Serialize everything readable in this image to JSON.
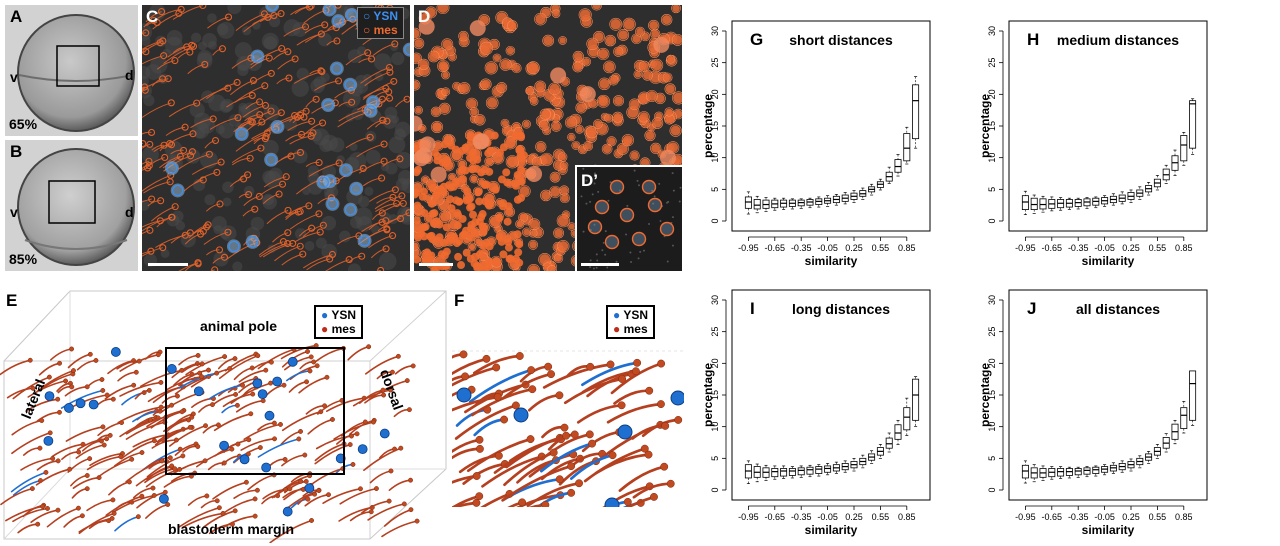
{
  "colors": {
    "ysn": "#1f6fd1",
    "mes": "#e0612a",
    "mes_3d": "#b5401f",
    "micro_bg": "#2e2e2e",
    "embryo_bg": "#d2d2d2"
  },
  "panels": {
    "A": {
      "label": "A",
      "stage": "65%",
      "left": "v",
      "right": "d"
    },
    "B": {
      "label": "B",
      "stage": "85%",
      "left": "v",
      "right": "d"
    },
    "C": {
      "label": "C",
      "legend": {
        "ysn": "YSN",
        "mes": "mes"
      }
    },
    "D": {
      "label": "D",
      "inset_label": "D’"
    },
    "E": {
      "label": "E",
      "top": "animal pole",
      "bottom": "blastoderm margin",
      "left": "lateral",
      "right": "dorsal",
      "legend": {
        "ysn": "YSN",
        "mes": "mes"
      }
    },
    "F": {
      "label": "F",
      "legend": {
        "ysn": "YSN",
        "mes": "mes"
      }
    }
  },
  "chart_data": [
    {
      "panel": "G",
      "type": "box",
      "title": "short distances",
      "xlabel": "similarity",
      "ylabel": "percentage",
      "ylim": [
        0,
        30
      ],
      "yticks": [
        0,
        5,
        10,
        15,
        20,
        25,
        30
      ],
      "xticks": [
        -0.95,
        -0.65,
        -0.35,
        -0.05,
        0.25,
        0.55,
        0.85
      ],
      "x": [
        -0.95,
        -0.85,
        -0.75,
        -0.65,
        -0.55,
        -0.45,
        -0.35,
        -0.25,
        -0.15,
        -0.05,
        0.05,
        0.15,
        0.25,
        0.35,
        0.45,
        0.55,
        0.65,
        0.75,
        0.85,
        0.95
      ],
      "median": [
        3,
        2.5,
        2.6,
        2.7,
        2.8,
        2.8,
        2.9,
        3,
        3.1,
        3.2,
        3.4,
        3.6,
        3.9,
        4.3,
        5,
        5.8,
        7,
        8.6,
        11.5,
        19
      ],
      "q1": [
        2,
        1.9,
        2,
        2.1,
        2.2,
        2.3,
        2.4,
        2.5,
        2.6,
        2.8,
        2.9,
        3.1,
        3.4,
        3.9,
        4.6,
        5.3,
        6.3,
        7.7,
        9.5,
        13
      ],
      "q3": [
        3.8,
        3.4,
        3.3,
        3.3,
        3.3,
        3.3,
        3.3,
        3.4,
        3.5,
        3.6,
        3.9,
        4.1,
        4.4,
        4.8,
        5.4,
        6.2,
        7.7,
        9.7,
        13.8,
        21.5
      ],
      "min": [
        1.1,
        1.3,
        1.5,
        1.7,
        1.8,
        1.9,
        2,
        2.1,
        2.2,
        2.3,
        2.5,
        2.7,
        2.9,
        3.4,
        4.1,
        4.9,
        5.9,
        7.1,
        9,
        11.5
      ],
      "max": [
        4.6,
        3.9,
        3.7,
        3.6,
        3.6,
        3.5,
        3.5,
        3.6,
        3.8,
        4,
        4.2,
        4.5,
        4.8,
        5.2,
        5.8,
        6.6,
        8.5,
        10.5,
        14.8,
        22.8
      ]
    },
    {
      "panel": "H",
      "type": "box",
      "title": "medium distances",
      "xlabel": "similarity",
      "ylabel": "percentage",
      "ylim": [
        0,
        30
      ],
      "yticks": [
        0,
        5,
        10,
        15,
        20,
        25,
        30
      ],
      "xticks": [
        -0.95,
        -0.65,
        -0.35,
        -0.05,
        0.25,
        0.55,
        0.85
      ],
      "x": [
        -0.95,
        -0.85,
        -0.75,
        -0.65,
        -0.55,
        -0.45,
        -0.35,
        -0.25,
        -0.15,
        -0.05,
        0.05,
        0.15,
        0.25,
        0.35,
        0.45,
        0.55,
        0.65,
        0.75,
        0.85,
        0.95
      ],
      "median": [
        3,
        2.6,
        2.6,
        2.7,
        2.8,
        2.8,
        2.9,
        3,
        3.1,
        3.2,
        3.4,
        3.6,
        3.9,
        4.4,
        5.1,
        6,
        7.3,
        9.2,
        12,
        18.5
      ],
      "q1": [
        1.8,
        1.8,
        1.9,
        2,
        2.1,
        2.2,
        2.3,
        2.4,
        2.5,
        2.7,
        2.9,
        3.1,
        3.4,
        3.9,
        4.6,
        5.4,
        6.5,
        8,
        9.5,
        11.5
      ],
      "q3": [
        4,
        3.6,
        3.5,
        3.4,
        3.4,
        3.4,
        3.4,
        3.5,
        3.6,
        3.7,
        3.9,
        4.1,
        4.5,
        4.9,
        5.6,
        6.6,
        8.2,
        10.3,
        13.5,
        19
      ],
      "min": [
        1,
        1.2,
        1.4,
        1.6,
        1.7,
        1.8,
        1.9,
        2,
        2.1,
        2.3,
        2.5,
        2.7,
        2.9,
        3.4,
        4.1,
        4.9,
        5.9,
        7.2,
        8.8,
        10.5
      ],
      "max": [
        4.7,
        4.1,
        3.9,
        3.8,
        3.7,
        3.6,
        3.6,
        3.7,
        3.8,
        4,
        4.3,
        4.6,
        4.9,
        5.4,
        6.1,
        7.2,
        8.8,
        11.2,
        14,
        19.3
      ]
    },
    {
      "panel": "I",
      "type": "box",
      "title": "long distances",
      "xlabel": "similarity",
      "ylabel": "percentage",
      "ylim": [
        0,
        30
      ],
      "yticks": [
        0,
        5,
        10,
        15,
        20,
        25,
        30
      ],
      "xticks": [
        -0.95,
        -0.65,
        -0.35,
        -0.05,
        0.25,
        0.55,
        0.85
      ],
      "x": [
        -0.95,
        -0.85,
        -0.75,
        -0.65,
        -0.55,
        -0.45,
        -0.35,
        -0.25,
        -0.15,
        -0.05,
        0.05,
        0.15,
        0.25,
        0.35,
        0.45,
        0.55,
        0.65,
        0.75,
        0.85,
        0.95
      ],
      "median": [
        3,
        2.8,
        2.8,
        2.9,
        3,
        3,
        3.1,
        3.2,
        3.3,
        3.4,
        3.5,
        3.7,
        4,
        4.5,
        5.2,
        6.1,
        7.3,
        9,
        11.5,
        15
      ],
      "q1": [
        1.9,
        2,
        2,
        2.1,
        2.2,
        2.3,
        2.4,
        2.5,
        2.6,
        2.8,
        3,
        3.2,
        3.5,
        4,
        4.7,
        5.5,
        6.6,
        8,
        9.5,
        11
      ],
      "q3": [
        4,
        3.7,
        3.5,
        3.4,
        3.4,
        3.4,
        3.5,
        3.6,
        3.7,
        3.8,
        4,
        4.2,
        4.5,
        5,
        5.7,
        6.7,
        8.2,
        10.3,
        13,
        17.5
      ],
      "min": [
        1,
        1.3,
        1.5,
        1.7,
        1.8,
        1.9,
        2,
        2.1,
        2.2,
        2.4,
        2.6,
        2.8,
        3,
        3.5,
        4.2,
        5,
        6,
        7.2,
        8.6,
        10
      ],
      "max": [
        4.6,
        4.1,
        3.9,
        3.8,
        3.8,
        3.7,
        3.8,
        3.9,
        4,
        4.2,
        4.4,
        4.6,
        5,
        5.5,
        6.2,
        7.2,
        9,
        11,
        14.5,
        17.9
      ]
    },
    {
      "panel": "J",
      "type": "box",
      "title": "all distances",
      "xlabel": "similarity",
      "ylabel": "percentage",
      "ylim": [
        0,
        30
      ],
      "yticks": [
        0,
        5,
        10,
        15,
        20,
        25,
        30
      ],
      "xticks": [
        -0.95,
        -0.65,
        -0.35,
        -0.05,
        0.25,
        0.55,
        0.85
      ],
      "x": [
        -0.95,
        -0.85,
        -0.75,
        -0.65,
        -0.55,
        -0.45,
        -0.35,
        -0.25,
        -0.15,
        -0.05,
        0.05,
        0.15,
        0.25,
        0.35,
        0.45,
        0.55,
        0.65,
        0.75,
        0.85,
        0.95
      ],
      "median": [
        3,
        2.7,
        2.7,
        2.8,
        2.9,
        2.9,
        3,
        3.1,
        3.2,
        3.3,
        3.5,
        3.7,
        4,
        4.5,
        5.2,
        6.1,
        7.4,
        9.2,
        11.8,
        16.8
      ],
      "q1": [
        1.9,
        1.9,
        2,
        2.1,
        2.2,
        2.3,
        2.4,
        2.5,
        2.6,
        2.8,
        3,
        3.2,
        3.5,
        4,
        4.7,
        5.5,
        6.6,
        8,
        9.7,
        11
      ],
      "q3": [
        3.9,
        3.5,
        3.4,
        3.4,
        3.4,
        3.4,
        3.4,
        3.5,
        3.6,
        3.7,
        3.9,
        4.2,
        4.5,
        5,
        5.7,
        6.7,
        8.3,
        10.4,
        13,
        18.8
      ],
      "min": [
        1.1,
        1.3,
        1.5,
        1.7,
        1.8,
        1.9,
        2,
        2.1,
        2.2,
        2.4,
        2.6,
        2.8,
        3,
        3.5,
        4.2,
        5,
        6,
        7.3,
        9,
        10.2
      ],
      "max": [
        4.6,
        4,
        3.8,
        3.7,
        3.7,
        3.6,
        3.6,
        3.7,
        3.8,
        4,
        4.3,
        4.6,
        4.9,
        5.4,
        6.1,
        7.2,
        8.9,
        11,
        14,
        18.8
      ]
    }
  ]
}
